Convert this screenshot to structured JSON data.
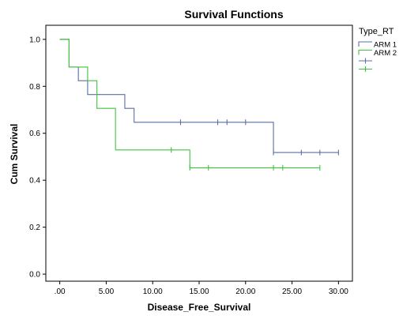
{
  "chart_data": {
    "type": "line",
    "subtype": "kaplan-meier-step",
    "title": "Survival Functions",
    "xlabel": "Disease_Free_Survival",
    "ylabel": "Cum Survival",
    "xlim": [
      -1.5,
      31.5
    ],
    "ylim": [
      -0.03,
      1.06
    ],
    "x_ticks": [
      0,
      5,
      10,
      15,
      20,
      25,
      30
    ],
    "x_tick_labels": [
      ".00",
      "5.00",
      "10.00",
      "15.00",
      "20.00",
      "25.00",
      "30.00"
    ],
    "y_ticks": [
      0,
      0.2,
      0.4,
      0.6,
      0.8,
      1.0
    ],
    "y_tick_labels": [
      "0.0",
      "0.2",
      "0.4",
      "0.6",
      "0.8",
      "1.0"
    ],
    "grid": false,
    "legend": {
      "title": "Type_RT",
      "placement": "right",
      "entries": [
        {
          "label": "ARM 1",
          "kind": "line",
          "series": 0
        },
        {
          "label": "ARM 2",
          "kind": "line",
          "series": 1
        },
        {
          "label": "",
          "kind": "censor",
          "series": 0
        },
        {
          "label": "",
          "kind": "censor",
          "series": 1
        }
      ]
    },
    "series": [
      {
        "name": "ARM 1",
        "color": "#5b6fa8",
        "x": [
          0,
          1,
          2,
          3,
          7,
          8,
          23,
          30
        ],
        "y": [
          1.0,
          0.882,
          0.824,
          0.765,
          0.706,
          0.647,
          0.518,
          0.518
        ],
        "censored": [
          {
            "x": 13,
            "y": 0.647
          },
          {
            "x": 17,
            "y": 0.647
          },
          {
            "x": 18,
            "y": 0.647
          },
          {
            "x": 20,
            "y": 0.647
          },
          {
            "x": 23,
            "y": 0.518
          },
          {
            "x": 26,
            "y": 0.518
          },
          {
            "x": 28,
            "y": 0.518
          },
          {
            "x": 30,
            "y": 0.518
          }
        ]
      },
      {
        "name": "ARM 2",
        "color": "#3ec43e",
        "x": [
          0,
          1,
          3,
          4,
          6,
          14,
          28
        ],
        "y": [
          1.0,
          0.882,
          0.824,
          0.706,
          0.529,
          0.453,
          0.453
        ],
        "censored": [
          {
            "x": 12,
            "y": 0.529
          },
          {
            "x": 14,
            "y": 0.453
          },
          {
            "x": 16,
            "y": 0.453
          },
          {
            "x": 23,
            "y": 0.453
          },
          {
            "x": 24,
            "y": 0.453
          },
          {
            "x": 28,
            "y": 0.453
          }
        ]
      }
    ]
  }
}
